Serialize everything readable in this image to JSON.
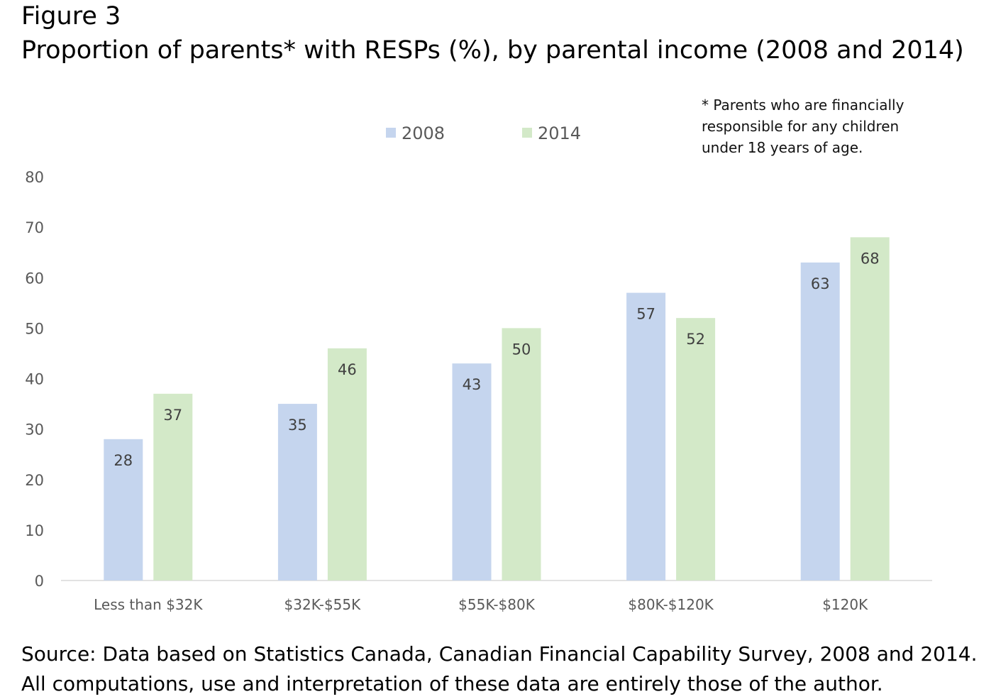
{
  "figure_label": "Figure 3",
  "title": "Proportion of parents* with RESPs (%), by parental income (2008 and 2014)",
  "footnote": {
    "lines": [
      "* Parents who are financially",
      "responsible for any children",
      "under 18 years of age."
    ]
  },
  "source": {
    "lines": [
      "Source: Data based on Statistics Canada, Canadian Financial Capability Survey, 2008 and 2014.",
      "All computations, use and interpretation of these data are entirely those of the author."
    ]
  },
  "chart_data": {
    "type": "bar",
    "categories": [
      "Less than $32K",
      "$32K-$55K",
      "$55K-$80K",
      "$80K-$120K",
      "$120K"
    ],
    "series": [
      {
        "name": "2008",
        "color": "#c5d5ee",
        "values": [
          28,
          35,
          43,
          57,
          63
        ]
      },
      {
        "name": "2014",
        "color": "#d3e9c8",
        "values": [
          37,
          46,
          50,
          52,
          68
        ]
      }
    ],
    "ylim": [
      0,
      80
    ],
    "yticks": [
      "0",
      "10",
      "20",
      "30",
      "40",
      "50",
      "60",
      "70",
      "80"
    ],
    "legend_position": "top-center",
    "grid": false,
    "data_labels": true
  }
}
